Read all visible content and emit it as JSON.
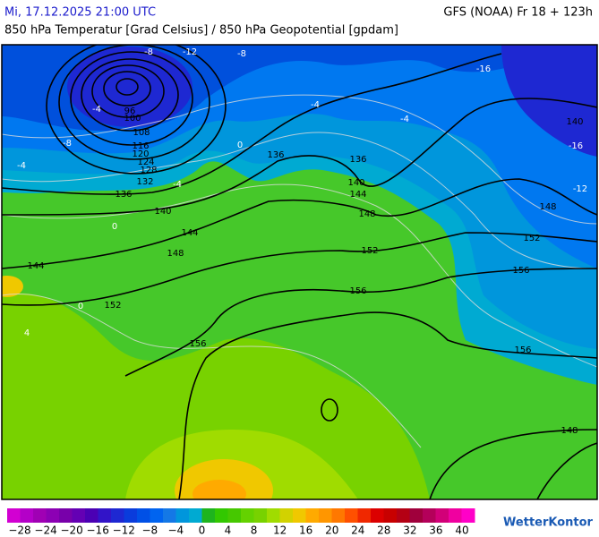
{
  "header": {
    "datetime": "Mi, 17.12.2025 21:00 UTC",
    "model": "GFS (NOAA) Fr 18 + 123h",
    "title": "850 hPa Temperatur [Grad Celsius] / 850 hPa Geopotential [gpdam]"
  },
  "map": {
    "geopotential_labels": [
      "96",
      "100",
      "108",
      "116",
      "120",
      "124",
      "128",
      "132",
      "136",
      "140",
      "144",
      "148",
      "144",
      "152",
      "156",
      "136",
      "136",
      "140",
      "144",
      "148",
      "152",
      "156",
      "148",
      "152",
      "156",
      "156",
      "140",
      "148"
    ],
    "temperature_labels": [
      "-12",
      "-8",
      "-8",
      "-16",
      "-4",
      "-8",
      "-4",
      "-4",
      "0",
      "0",
      "-4",
      "-4",
      "-12",
      "-16",
      "0",
      "4"
    ]
  },
  "legend": {
    "colors": [
      "#d200d2",
      "#b400c8",
      "#a000b4",
      "#8c00b4",
      "#7800aa",
      "#6400b4",
      "#4b00b4",
      "#3214c8",
      "#1e28d2",
      "#0a3cdc",
      "#0050e6",
      "#0064f0",
      "#1478e6",
      "#0096dc",
      "#00aad2",
      "#1eb41e",
      "#32c800",
      "#46c800",
      "#64d200",
      "#78d200",
      "#a0dc00",
      "#d2d200",
      "#f0c800",
      "#ffaa00",
      "#ff9600",
      "#ff7800",
      "#ff5000",
      "#f02800",
      "#dc0000",
      "#c80000",
      "#b40014",
      "#a0003c",
      "#b4005a",
      "#d20078",
      "#f000a0",
      "#ff00c8"
    ],
    "labels": [
      "−28",
      "−24",
      "−20",
      "−16",
      "−12",
      "−8",
      "−4",
      "0",
      "4",
      "8",
      "12",
      "16",
      "20",
      "24",
      "28",
      "32",
      "36",
      "40"
    ]
  },
  "logo": "WetterKontor"
}
